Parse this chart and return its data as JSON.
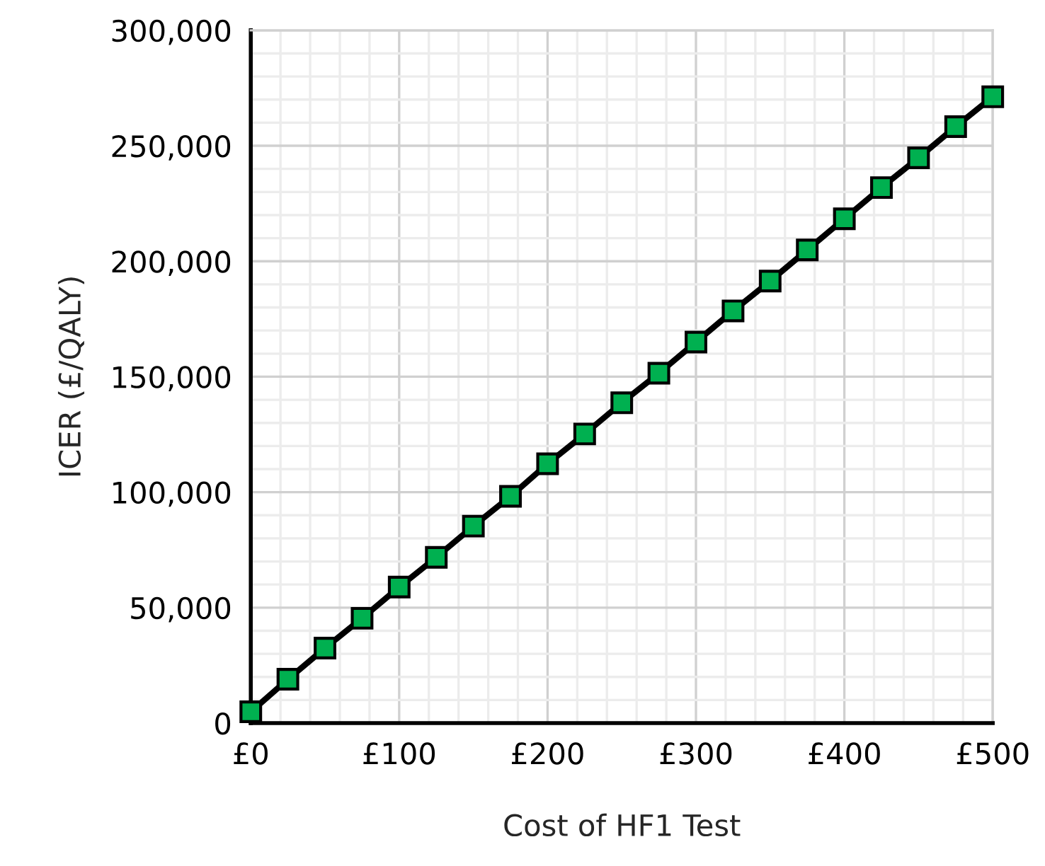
{
  "chart_data": {
    "type": "line",
    "xlabel": "Cost of HF1 Test",
    "ylabel": "ICER (£/QALY)",
    "x": [
      0,
      25,
      50,
      75,
      100,
      125,
      150,
      175,
      200,
      225,
      250,
      275,
      300,
      325,
      350,
      375,
      400,
      425,
      450,
      475,
      500
    ],
    "series": [
      {
        "color": "#00b050",
        "values": [
          4900,
          19000,
          32500,
          45400,
          58900,
          71800,
          85300,
          98200,
          112300,
          125200,
          138700,
          151500,
          165000,
          178500,
          191400,
          204900,
          218400,
          231900,
          244800,
          258300,
          271200
        ]
      }
    ],
    "xlim": [
      0,
      500
    ],
    "xticks": [
      {
        "value": 0,
        "label": "£0"
      },
      {
        "value": 100,
        "label": "£100"
      },
      {
        "value": 200,
        "label": "£200"
      },
      {
        "value": 300,
        "label": "£300"
      },
      {
        "value": 400,
        "label": "£400"
      },
      {
        "value": 500,
        "label": "£500"
      }
    ],
    "ylim": [
      0,
      300000
    ],
    "yticks": [
      0,
      {
        "value": 50000,
        "label": "50,000"
      },
      {
        "value": 100000,
        "label": "100,000"
      },
      {
        "value": 150000,
        "label": "150,000"
      },
      {
        "value": 200000,
        "label": "200,000"
      },
      {
        "value": 250000,
        "label": "250,000"
      },
      {
        "value": 300000,
        "label": "300,000"
      }
    ],
    "grid": true,
    "marker": "square",
    "line_style": "solid"
  }
}
